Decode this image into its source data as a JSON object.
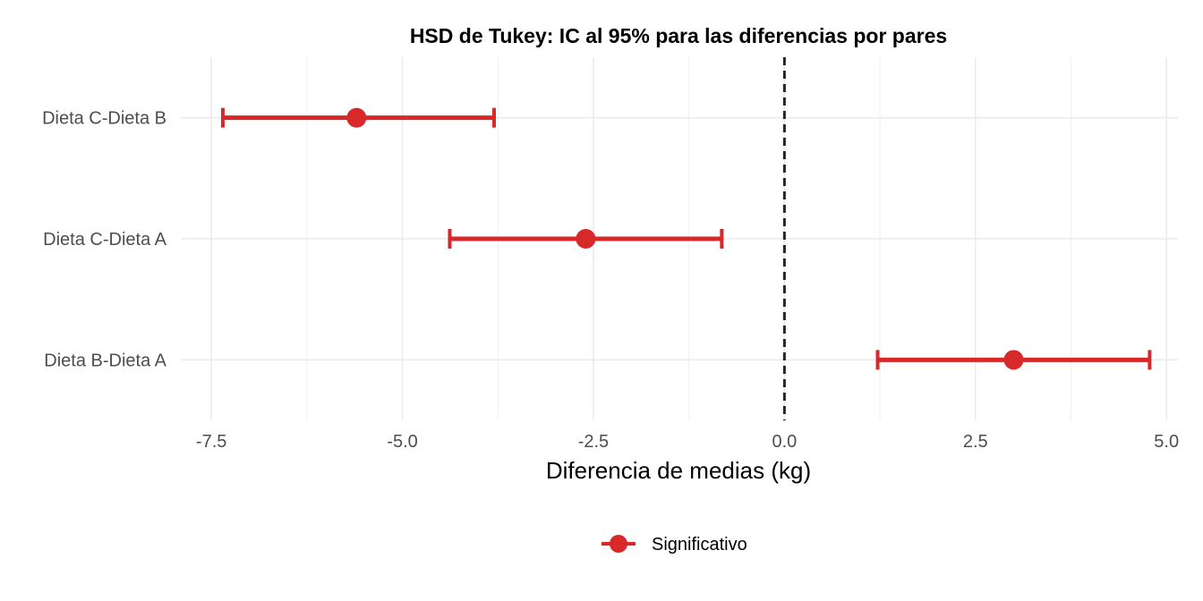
{
  "chart_data": {
    "type": "errorbar",
    "title": "HSD de Tukey: IC al 95% para las diferencias por pares",
    "xlabel": "Diferencia de medias (kg)",
    "ylabel": "",
    "xlim": [
      -7.9,
      5.15
    ],
    "xticks": [
      -7.5,
      -5.0,
      -2.5,
      0.0,
      2.5,
      5.0
    ],
    "xtick_labels": [
      "-7.5",
      "-5.0",
      "-2.5",
      "0.0",
      "2.5",
      "5.0"
    ],
    "reference_line": 0,
    "grid": true,
    "legend_position": "bottom",
    "legend": [
      {
        "label": "Significativo",
        "color": "#d7282a"
      }
    ],
    "series_color": "#d7282a",
    "categories": [
      "Dieta C-Dieta B",
      "Dieta C-Dieta A",
      "Dieta B-Dieta A"
    ],
    "points": [
      {
        "label": "Dieta C-Dieta B",
        "estimate": -5.6,
        "lower": -7.35,
        "upper": -3.8,
        "significant": true
      },
      {
        "label": "Dieta C-Dieta A",
        "estimate": -2.6,
        "lower": -4.38,
        "upper": -0.82,
        "significant": true
      },
      {
        "label": "Dieta B-Dieta A",
        "estimate": 3.0,
        "lower": 1.22,
        "upper": 4.78,
        "significant": true
      }
    ]
  }
}
